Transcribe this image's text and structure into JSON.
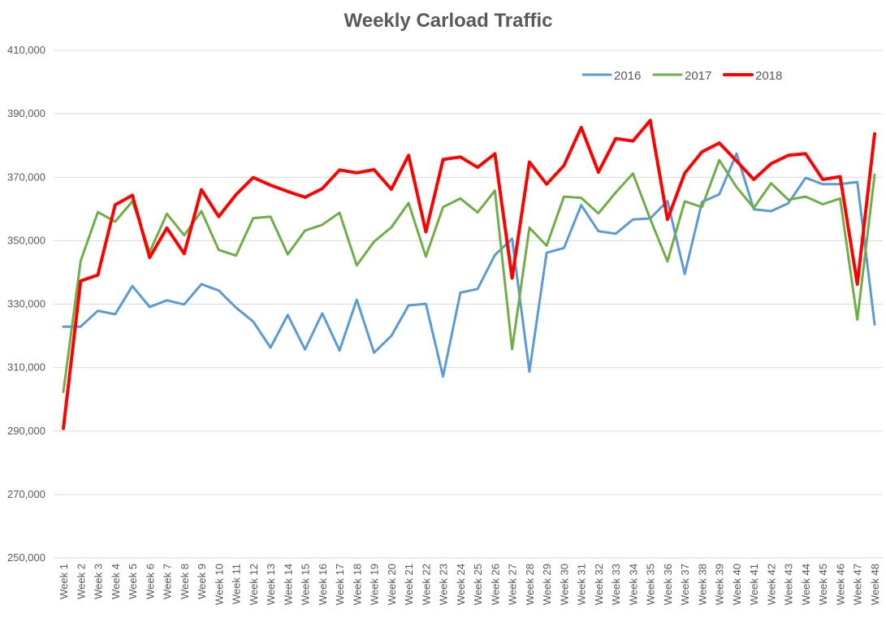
{
  "chart_data": {
    "type": "line",
    "title": "Weekly Carload Traffic",
    "xlabel": "",
    "ylabel": "",
    "ylim": [
      250000,
      410000
    ],
    "yticks": [
      250000,
      270000,
      290000,
      310000,
      330000,
      350000,
      370000,
      390000,
      410000
    ],
    "ytick_labels": [
      "250,000",
      "270,000",
      "290,000",
      "310,000",
      "330,000",
      "350,000",
      "370,000",
      "390,000",
      "410,000"
    ],
    "grid": true,
    "legend_position": "top-right",
    "categories": [
      "Week 1",
      "Week 2",
      "Week 3",
      "Week 4",
      "Week 5",
      "Week 6",
      "Week 7",
      "Week 8",
      "Week 9",
      "Week 10",
      "Week 11",
      "Week 12",
      "Week 13",
      "Week 14",
      "Week 15",
      "Week 16",
      "Week 17",
      "Week 18",
      "Week 19",
      "Week 20",
      "Week 21",
      "Week 22",
      "Week 23",
      "Week 24",
      "Week 25",
      "Week 26",
      "Week 27",
      "Week 28",
      "Week 29",
      "Week 30",
      "Week 31",
      "Week 32",
      "Week 33",
      "Week 34",
      "Week 35",
      "Week 36",
      "Week 37",
      "Week 38",
      "Week 39",
      "Week 40",
      "Week 41",
      "Week 42",
      "Week 43",
      "Week 44",
      "Week 45",
      "Week 46",
      "Week 47",
      "Week 48"
    ],
    "series": [
      {
        "name": "2016",
        "color": "#5b9bd5",
        "values": [
          322900,
          322900,
          327900,
          326800,
          335700,
          329100,
          331200,
          329900,
          336300,
          334300,
          328900,
          324500,
          316300,
          326600,
          315700,
          327100,
          315400,
          331400,
          314700,
          320000,
          329600,
          330100,
          307200,
          333600,
          334800,
          345500,
          350600,
          308700,
          346200,
          347700,
          361200,
          353000,
          352200,
          356700,
          357000,
          362500,
          339500,
          362200,
          364600,
          377500,
          359900,
          359300,
          361800,
          369800,
          367800,
          367800,
          368500,
          323600
        ]
      },
      {
        "name": "2017",
        "color": "#70ad47",
        "values": [
          302300,
          343600,
          359000,
          356000,
          362400,
          346400,
          358500,
          351700,
          359300,
          347100,
          345300,
          357100,
          357600,
          345700,
          353200,
          355000,
          358800,
          342200,
          349700,
          354200,
          361900,
          345000,
          360600,
          363300,
          358900,
          365800,
          315800,
          354100,
          348400,
          363900,
          363500,
          358600,
          365200,
          371200,
          356800,
          343500,
          362400,
          360600,
          375400,
          366900,
          360300,
          368100,
          362900,
          363900,
          361500,
          363300,
          325100,
          370800
        ]
      },
      {
        "name": "2018",
        "color": "#ff0000",
        "values": [
          290800,
          337300,
          339200,
          361300,
          364300,
          344700,
          354000,
          345900,
          366100,
          357600,
          364500,
          369900,
          367500,
          365500,
          363700,
          366400,
          372300,
          371400,
          372400,
          366200,
          376900,
          352800,
          375600,
          376400,
          373100,
          377400,
          338200,
          374800,
          367800,
          373700,
          385700,
          371600,
          382200,
          381400,
          387900,
          356700,
          371300,
          378000,
          380800,
          375100,
          369300,
          374300,
          376900,
          377400,
          369300,
          370200,
          336300,
          383700
        ]
      }
    ]
  }
}
